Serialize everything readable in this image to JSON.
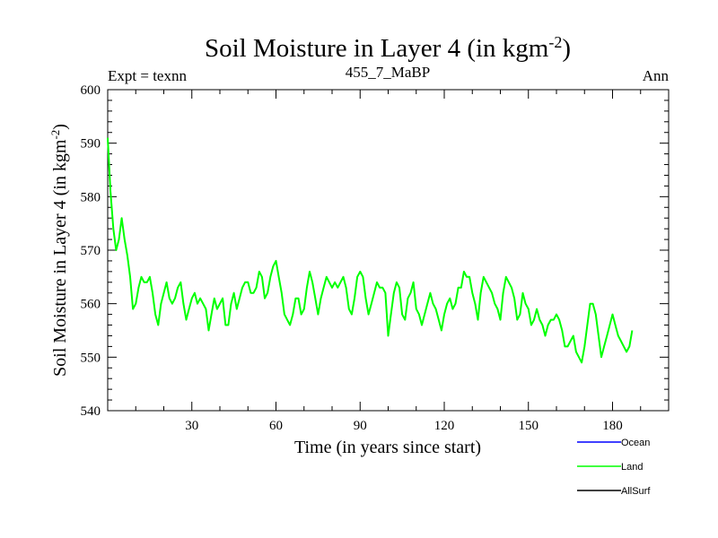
{
  "chart_data": {
    "type": "line",
    "title": "Soil Moisture in Layer 4 (in kgm",
    "title_sup": "-2",
    "title_end": ")",
    "subtitle_left": "Expt = texnn",
    "subtitle_center": "455_7_MaBP",
    "subtitle_right": "Ann",
    "xlabel": "Time (in years since start)",
    "ylabel": "Soil Moisture in Layer 4 (in kgm",
    "ylabel_sup": "-2",
    "ylabel_end": ")",
    "xlim": [
      0,
      200
    ],
    "ylim": [
      540,
      600
    ],
    "xticks": [
      30,
      60,
      90,
      120,
      150,
      180
    ],
    "yticks": [
      540,
      550,
      560,
      570,
      580,
      590,
      600
    ],
    "legend": [
      {
        "name": "Ocean",
        "color": "#0000ff"
      },
      {
        "name": "Land",
        "color": "#00ff00"
      },
      {
        "name": "AllSurf",
        "color": "#000000"
      }
    ],
    "series": [
      {
        "name": "Land",
        "color": "#00ff00",
        "x_start": 0,
        "x_step": 1,
        "values": [
          591,
          581,
          574,
          570,
          572,
          576,
          572,
          569,
          565,
          559,
          560,
          563,
          565,
          564,
          564,
          565,
          562,
          558,
          556,
          560,
          562,
          564,
          561,
          560,
          561,
          563,
          564,
          560,
          557,
          559,
          561,
          562,
          560,
          561,
          560,
          559,
          555,
          558,
          561,
          559,
          560,
          561,
          556,
          556,
          560,
          562,
          559,
          561,
          563,
          564,
          564,
          562,
          562,
          563,
          566,
          565,
          561,
          562,
          565,
          567,
          568,
          565,
          562,
          558,
          557,
          556,
          558,
          561,
          561,
          558,
          559,
          563,
          566,
          564,
          561,
          558,
          561,
          563,
          565,
          564,
          563,
          564,
          563,
          564,
          565,
          563,
          559,
          558,
          561,
          565,
          566,
          565,
          561,
          558,
          560,
          562,
          564,
          563,
          563,
          562,
          554,
          558,
          562,
          564,
          563,
          558,
          557,
          561,
          562,
          564,
          559,
          558,
          556,
          558,
          560,
          562,
          560,
          559,
          557,
          555,
          558,
          560,
          561,
          559,
          560,
          563,
          563,
          566,
          565,
          565,
          562,
          560,
          557,
          562,
          565,
          564,
          563,
          562,
          560,
          559,
          557,
          562,
          565,
          564,
          563,
          561,
          557,
          558,
          562,
          560,
          559,
          556,
          557,
          559,
          557,
          556,
          554,
          556,
          557,
          557,
          558,
          557,
          555,
          552,
          552,
          553,
          554,
          551,
          550,
          549,
          552,
          556,
          560,
          560,
          558,
          554,
          550,
          552,
          554,
          556,
          558,
          556,
          554,
          553,
          552,
          551,
          552,
          555
        ]
      }
    ]
  }
}
